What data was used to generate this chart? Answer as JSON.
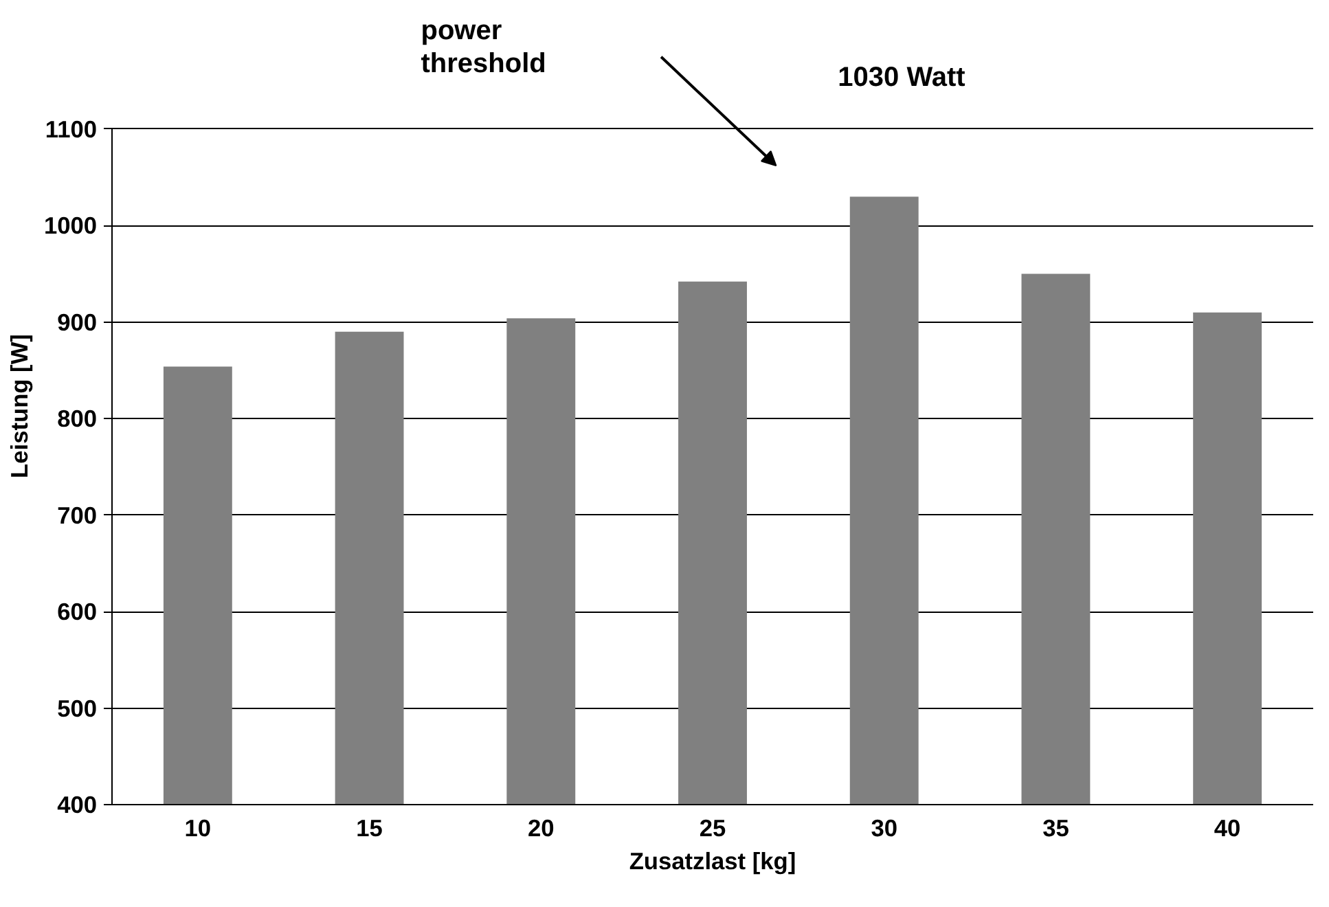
{
  "chart_data": {
    "type": "bar",
    "xlabel": "Zusatzlast [kg]",
    "ylabel": "Leistung [W]",
    "categories": [
      "10",
      "15",
      "20",
      "25",
      "30",
      "35",
      "40"
    ],
    "values": [
      854,
      890,
      904,
      942,
      1030,
      950,
      910
    ],
    "color": "#808080",
    "ylim": [
      400,
      1100
    ],
    "yticks": [
      400,
      500,
      600,
      700,
      800,
      900,
      1000,
      1100
    ],
    "grid": "y",
    "annotations": [
      "power threshold",
      "1030 Watt"
    ]
  }
}
